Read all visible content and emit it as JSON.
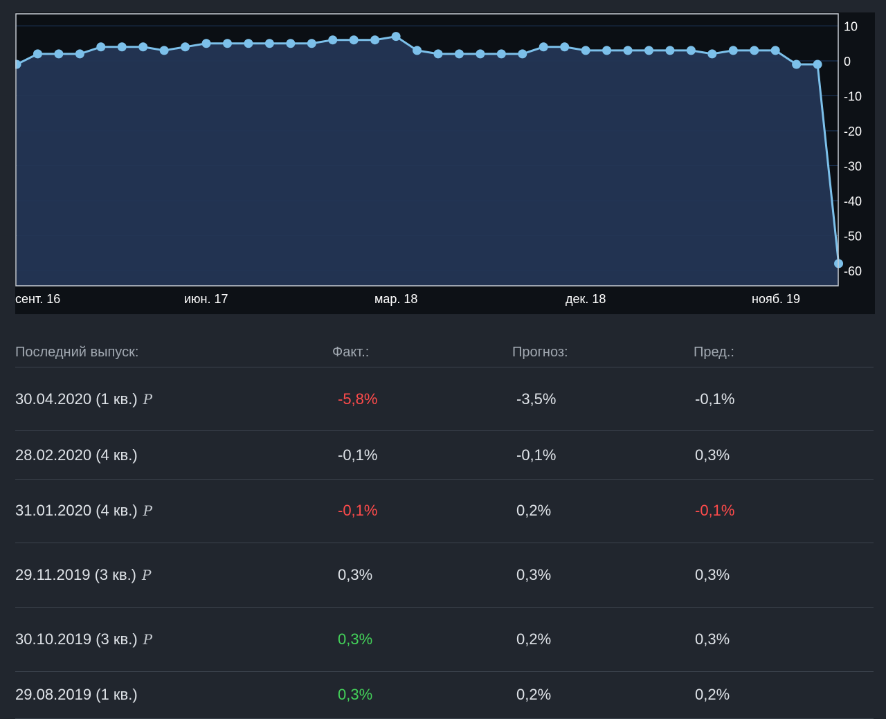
{
  "chart_data": {
    "type": "area",
    "title": "",
    "xlabel": "",
    "ylabel": "",
    "ylim": [
      -65,
      13
    ],
    "yticks": [
      10,
      0,
      -10,
      -20,
      -30,
      -40,
      -50,
      -60
    ],
    "x_tick_labels": [
      "сент. 16",
      "июн. 17",
      "мар. 18",
      "дек. 18",
      "нояб. 19"
    ],
    "grid": true,
    "series": [
      {
        "color": "#7cc0ea",
        "values": [
          -1,
          2,
          2,
          2,
          4,
          4,
          4,
          3,
          4,
          5,
          5,
          5,
          5,
          5,
          5,
          6,
          6,
          6,
          7,
          3,
          2,
          2,
          2,
          2,
          2,
          4,
          4,
          3,
          3,
          3,
          3,
          3,
          3,
          2,
          3,
          3,
          3,
          -1,
          -1,
          -58
        ]
      }
    ]
  },
  "colors": {
    "negative": "#ff4b4b",
    "positive": "#43d159"
  },
  "table": {
    "headers": {
      "release": "Последний выпуск:",
      "actual": "Факт.:",
      "forecast": "Прогноз:",
      "previous": "Пред.:"
    },
    "rows": [
      {
        "date": "30.04.2020 (1 кв.)",
        "prelim": "P",
        "actual": "-5,8%",
        "actual_status": "negative",
        "forecast": "-3,5%",
        "previous": "-0,1%",
        "previous_status": "neutral"
      },
      {
        "date": "28.02.2020 (4 кв.)",
        "prelim": "",
        "actual": "-0,1%",
        "actual_status": "neutral",
        "forecast": "-0,1%",
        "previous": "0,3%",
        "previous_status": "neutral"
      },
      {
        "date": "31.01.2020 (4 кв.)",
        "prelim": "P",
        "actual": "-0,1%",
        "actual_status": "negative",
        "forecast": "0,2%",
        "previous": "-0,1%",
        "previous_status": "negative"
      },
      {
        "date": "29.11.2019 (3 кв.)",
        "prelim": "P",
        "actual": "0,3%",
        "actual_status": "neutral",
        "forecast": "0,3%",
        "previous": "0,3%",
        "previous_status": "neutral"
      },
      {
        "date": "30.10.2019 (3 кв.)",
        "prelim": "P",
        "actual": "0,3%",
        "actual_status": "positive",
        "forecast": "0,2%",
        "previous": "0,3%",
        "previous_status": "neutral"
      },
      {
        "date": "29.08.2019 (1 кв.)",
        "prelim": "",
        "actual": "0,3%",
        "actual_status": "positive",
        "forecast": "0,2%",
        "previous": "0,2%",
        "previous_status": "neutral"
      }
    ]
  }
}
